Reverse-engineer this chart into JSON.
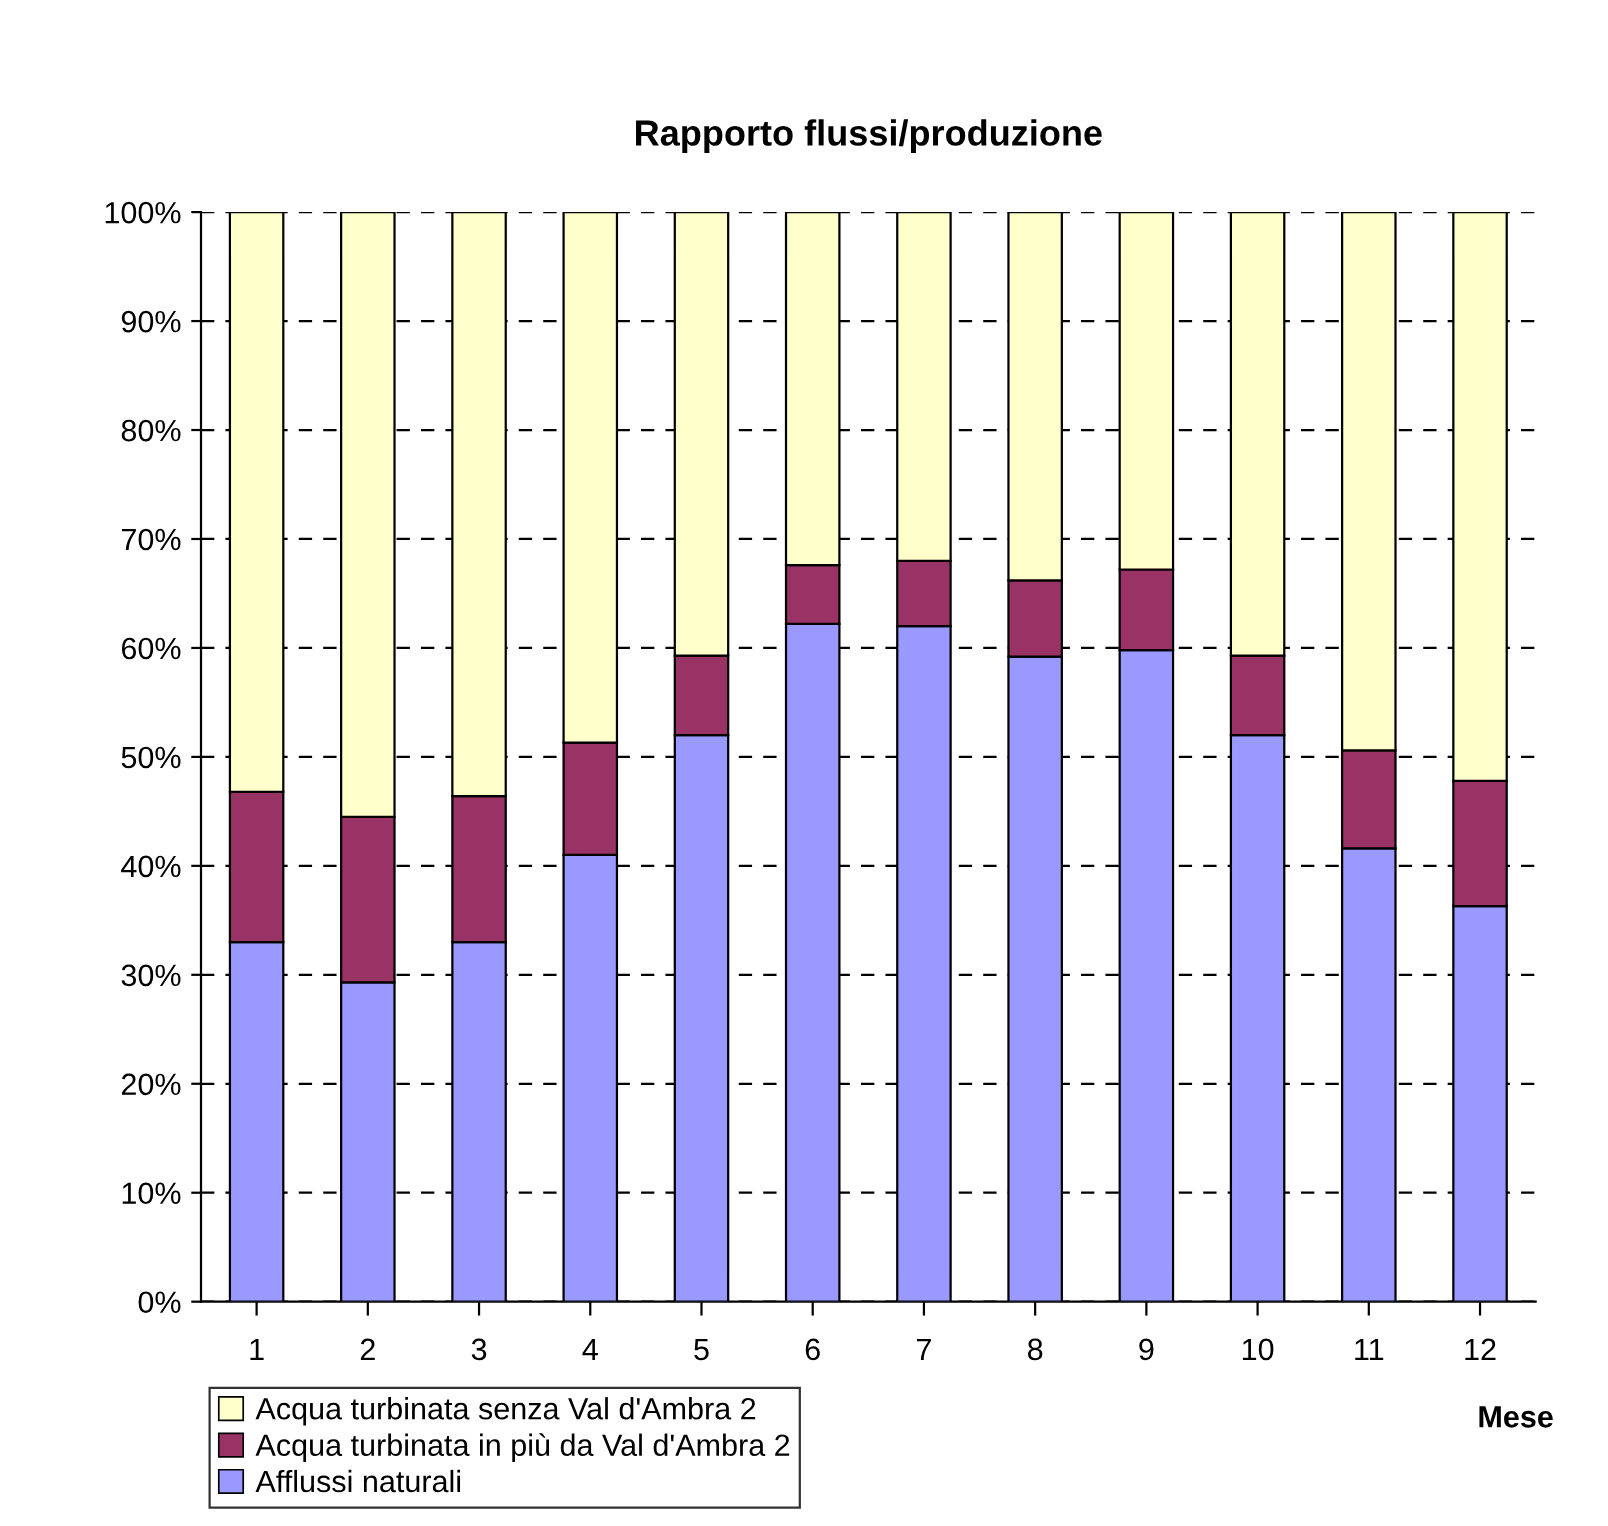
{
  "chart_data": {
    "type": "bar",
    "title": "Rapporto flussi/produzione",
    "xlabel": "Mese",
    "stacked": true,
    "categories": [
      "1",
      "2",
      "3",
      "4",
      "5",
      "6",
      "7",
      "8",
      "9",
      "10",
      "11",
      "12"
    ],
    "series": [
      {
        "name": "Afflussi naturali",
        "color": "#9999ff",
        "values": [
          33.0,
          29.3,
          33.0,
          41.0,
          52.0,
          62.2,
          62.0,
          59.2,
          59.8,
          52.0,
          41.6,
          36.3
        ]
      },
      {
        "name": "Acqua turbinata in più da Val d'Ambra 2",
        "color": "#993366",
        "values": [
          13.8,
          15.2,
          13.4,
          10.3,
          7.3,
          5.4,
          6.0,
          7.0,
          7.4,
          7.3,
          9.0,
          11.5
        ]
      },
      {
        "name": "Acqua turbinata senza Val d'Ambra 2",
        "color": "#ffffcc",
        "values": [
          53.2,
          55.5,
          53.6,
          48.7,
          40.7,
          32.4,
          32.0,
          33.8,
          32.8,
          40.7,
          49.4,
          52.2
        ]
      }
    ],
    "ylim": [
      0,
      100
    ],
    "yticks": [
      {
        "value": 0,
        "label": "0%"
      },
      {
        "value": 10,
        "label": "10%"
      },
      {
        "value": 20,
        "label": "20%"
      },
      {
        "value": 30,
        "label": "30%"
      },
      {
        "value": 40,
        "label": "40%"
      },
      {
        "value": 50,
        "label": "50%"
      },
      {
        "value": 60,
        "label": "60%"
      },
      {
        "value": 70,
        "label": "70%"
      },
      {
        "value": 80,
        "label": "80%"
      },
      {
        "value": 90,
        "label": "90%"
      },
      {
        "value": 100,
        "label": "100%"
      }
    ],
    "grid": "y",
    "legend": "bottom left"
  }
}
